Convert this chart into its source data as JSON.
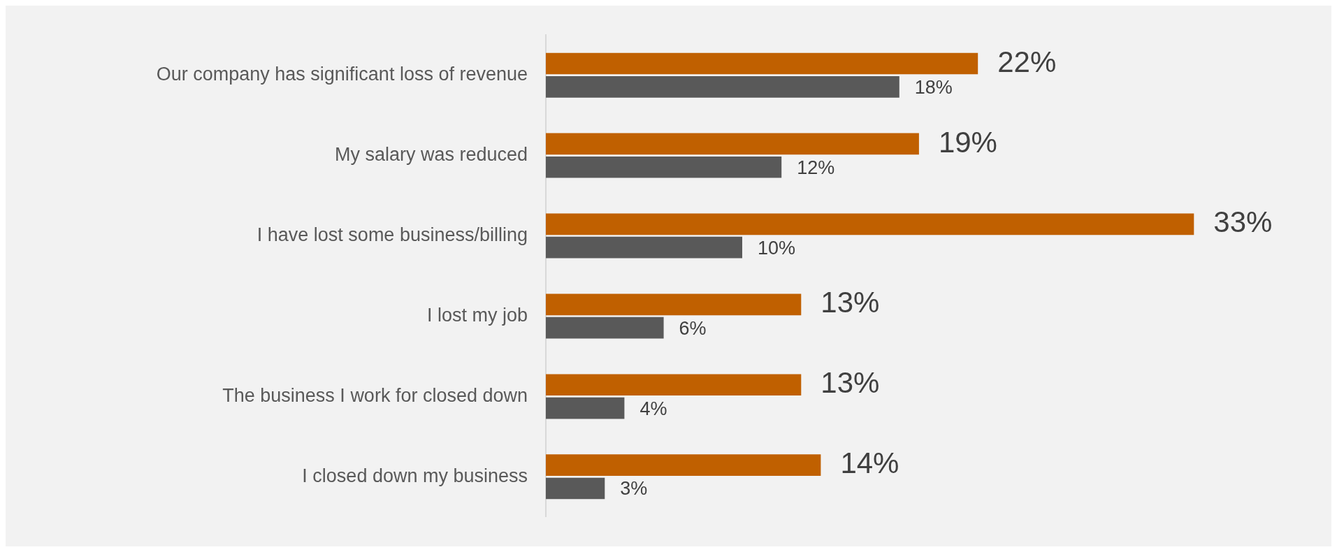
{
  "chart_data": {
    "type": "bar",
    "orientation": "horizontal",
    "categories": [
      "Our company has significant loss of revenue",
      "My salary was reduced",
      "I have lost some business/billing",
      "I lost my job",
      "The business I work for closed down",
      "I closed down my business"
    ],
    "series": [
      {
        "color": "#c06000",
        "values": [
          22,
          19,
          33,
          13,
          13,
          14
        ],
        "value_labels": [
          "22%",
          "19%",
          "33%",
          "13%",
          "13%",
          "14%"
        ]
      },
      {
        "color": "#595959",
        "values": [
          18,
          12,
          10,
          6,
          4,
          3
        ],
        "value_labels": [
          "18%",
          "12%",
          "10%",
          "6%",
          "4%",
          "3%"
        ]
      }
    ],
    "xlim": [
      0,
      40
    ],
    "legend": false,
    "tick_labels": "y"
  }
}
